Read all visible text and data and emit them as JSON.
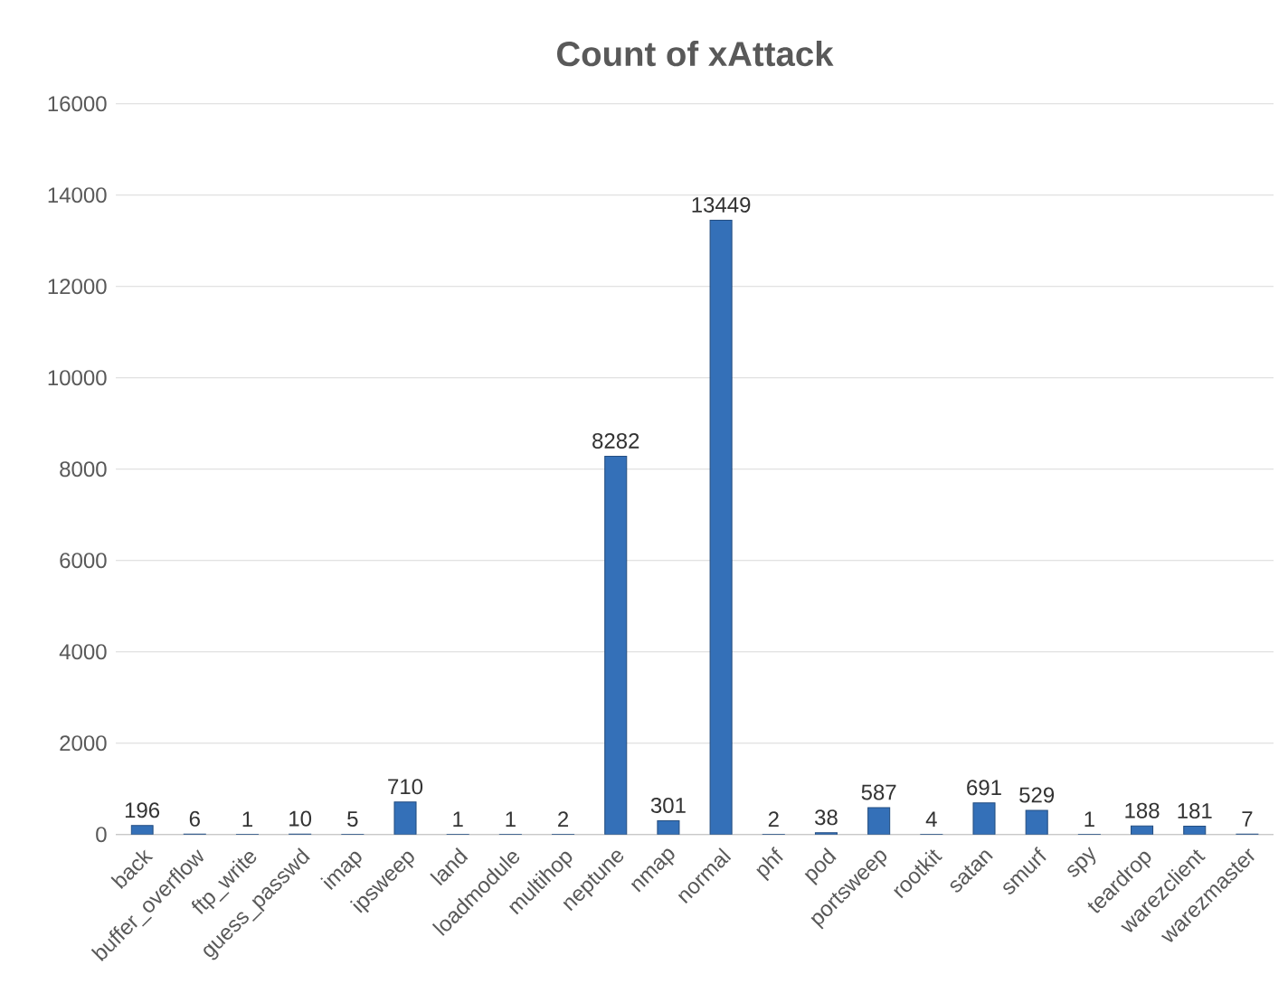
{
  "chart_data": {
    "type": "bar",
    "title": "Count of xAttack",
    "categories": [
      "back",
      "buffer_overflow",
      "ftp_write",
      "guess_passwd",
      "imap",
      "ipsweep",
      "land",
      "loadmodule",
      "multihop",
      "neptune",
      "nmap",
      "normal",
      "phf",
      "pod",
      "portsweep",
      "rootkit",
      "satan",
      "smurf",
      "spy",
      "teardrop",
      "warezclient",
      "warezmaster"
    ],
    "values": [
      196,
      6,
      1,
      10,
      5,
      710,
      1,
      1,
      2,
      8282,
      301,
      13449,
      2,
      38,
      587,
      4,
      691,
      529,
      1,
      188,
      181,
      7
    ],
    "color": "#3470b8",
    "ylim": [
      0,
      16000
    ],
    "yticks": [
      0,
      2000,
      4000,
      6000,
      8000,
      10000,
      12000,
      14000,
      16000
    ],
    "grid": "y",
    "data_labels": true
  }
}
